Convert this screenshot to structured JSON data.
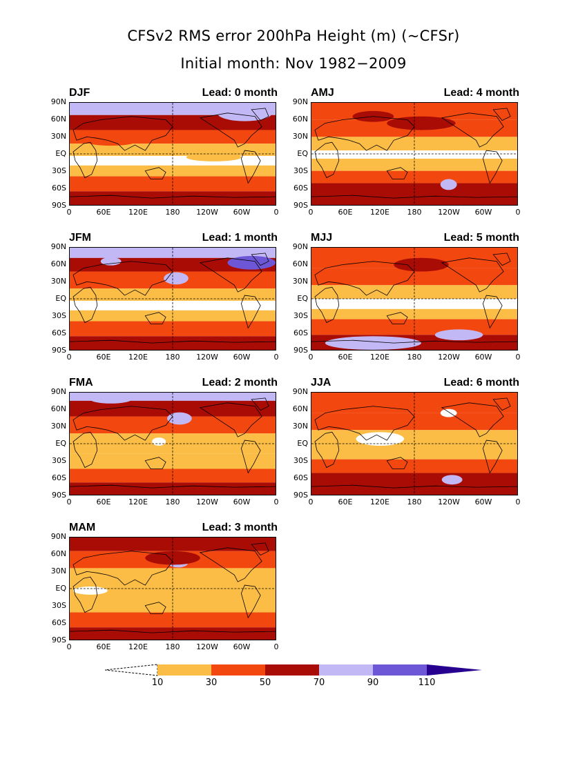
{
  "figure": {
    "title_line1": "CFSv2 RMS error 200hPa Height (m) (~CFSr)",
    "title_line2": "Initial month: Nov 1982−2009"
  },
  "axes": {
    "y_ticks": [
      "90N",
      "60N",
      "30N",
      "EQ",
      "30S",
      "60S",
      "90S"
    ],
    "x_ticks": [
      "0",
      "60E",
      "120E",
      "180",
      "120W",
      "60W",
      "0"
    ]
  },
  "panels": [
    {
      "season": "DJF",
      "lead": "Lead: 0 month"
    },
    {
      "season": "AMJ",
      "lead": "Lead: 4 month"
    },
    {
      "season": "JFM",
      "lead": "Lead: 1 month"
    },
    {
      "season": "MJJ",
      "lead": "Lead: 5 month"
    },
    {
      "season": "FMA",
      "lead": "Lead: 2 month"
    },
    {
      "season": "JJA",
      "lead": "Lead: 6 month"
    },
    {
      "season": "MAM",
      "lead": "Lead: 3 month"
    }
  ],
  "colorbar": {
    "labels": [
      "10",
      "30",
      "50",
      "70",
      "90",
      "110"
    ],
    "colors": {
      "below_10": "#ffffff",
      "c10_30": "#fbbd45",
      "c30_50": "#f2470f",
      "c50_70": "#a80c04",
      "c70_90": "#c2b8f6",
      "c90_110": "#6e57d7",
      "above_110": "#27008f"
    }
  }
}
